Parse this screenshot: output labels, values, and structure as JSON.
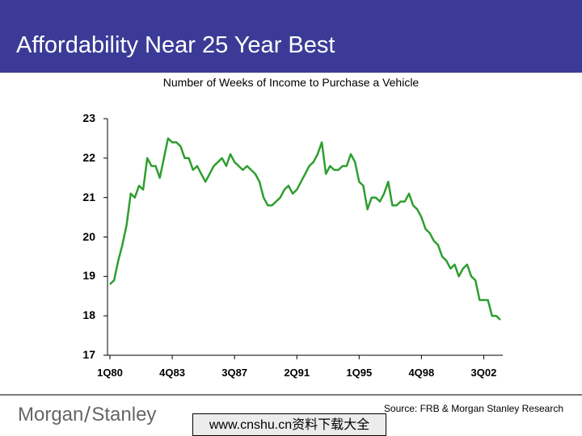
{
  "slide": {
    "title": "Affordability Near 25 Year Best",
    "source": "Source: FRB & Morgan Stanley Research",
    "watermark": "www.cnshu.cn资料下载大全",
    "logo_left": "Morgan",
    "logo_right": "Stanley"
  },
  "colors": {
    "title_bar": "#3b3b97",
    "line": "#2e9e2e",
    "axis": "#000000"
  },
  "chart_data": {
    "type": "line",
    "title": "Number of Weeks of Income to Purchase a Vehicle",
    "xlabel": "",
    "ylabel": "",
    "ylim": [
      17,
      23
    ],
    "yticks": [
      23,
      22,
      21,
      20,
      19,
      18,
      17
    ],
    "xticks": [
      "1Q80",
      "4Q83",
      "3Q87",
      "2Q91",
      "1Q95",
      "4Q98",
      "3Q02"
    ],
    "x_start_quarter": "1Q80",
    "series": [
      {
        "name": "Weeks of Income",
        "values": [
          18.8,
          18.9,
          19.4,
          19.8,
          20.3,
          21.1,
          21.0,
          21.3,
          21.2,
          22.0,
          21.8,
          21.8,
          21.5,
          22.0,
          22.5,
          22.4,
          22.4,
          22.3,
          22.0,
          22.0,
          21.7,
          21.8,
          21.6,
          21.4,
          21.6,
          21.8,
          21.9,
          22.0,
          21.8,
          22.1,
          21.9,
          21.8,
          21.7,
          21.8,
          21.7,
          21.6,
          21.4,
          21.0,
          20.8,
          20.8,
          20.9,
          21.0,
          21.2,
          21.3,
          21.1,
          21.2,
          21.4,
          21.6,
          21.8,
          21.9,
          22.1,
          22.4,
          21.6,
          21.8,
          21.7,
          21.7,
          21.8,
          21.8,
          22.1,
          21.9,
          21.4,
          21.3,
          20.7,
          21.0,
          21.0,
          20.9,
          21.1,
          21.4,
          20.8,
          20.8,
          20.9,
          20.9,
          21.1,
          20.8,
          20.7,
          20.5,
          20.2,
          20.1,
          19.9,
          19.8,
          19.5,
          19.4,
          19.2,
          19.3,
          19.0,
          19.2,
          19.3,
          19.0,
          18.9,
          18.4,
          18.4,
          18.4,
          18.0,
          18.0,
          17.9
        ]
      }
    ]
  }
}
